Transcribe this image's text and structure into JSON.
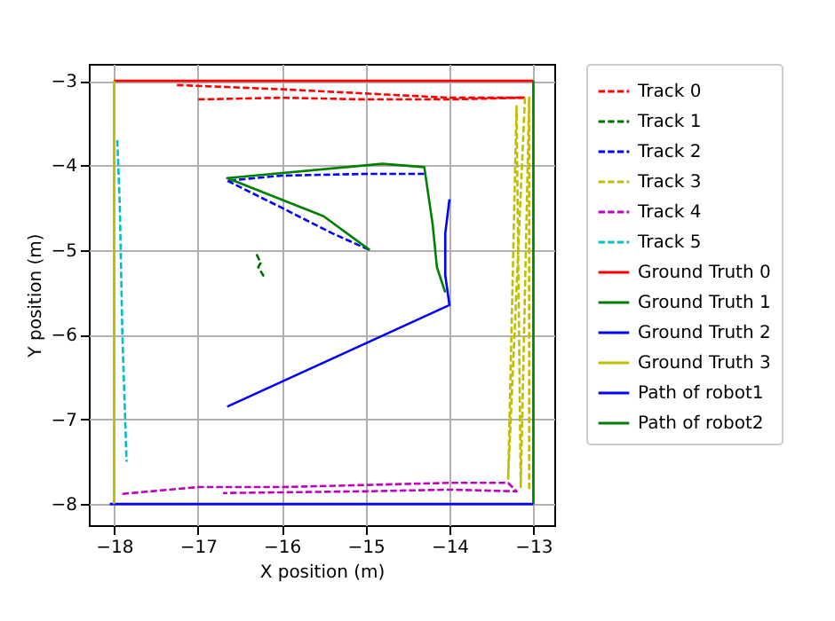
{
  "chart_data": {
    "type": "line",
    "xlabel": "X position (m)",
    "ylabel": "Y position (m)",
    "xlim": [
      -18.3,
      -12.75
    ],
    "ylim": [
      -8.25,
      -2.8
    ],
    "xticks": [
      {
        "value": -18,
        "label": "−18"
      },
      {
        "value": -17,
        "label": "−17"
      },
      {
        "value": -16,
        "label": "−16"
      },
      {
        "value": -15,
        "label": "−15"
      },
      {
        "value": -14,
        "label": "−14"
      },
      {
        "value": -13,
        "label": "−13"
      }
    ],
    "yticks": [
      {
        "value": -8,
        "label": "−8"
      },
      {
        "value": -7,
        "label": "−7"
      },
      {
        "value": -6,
        "label": "−6"
      },
      {
        "value": -5,
        "label": "−5"
      },
      {
        "value": -4,
        "label": "−4"
      },
      {
        "value": -3,
        "label": "−3"
      }
    ],
    "grid": true,
    "legend": "right",
    "series": [
      {
        "name": "Track 0",
        "color": "#ff0000",
        "line_style": "dashed",
        "x": [
          -17.25,
          -16,
          -15,
          -14,
          -13.1,
          -14,
          -15,
          -16,
          -17
        ],
        "values": [
          -3.05,
          -3.1,
          -3.15,
          -3.2,
          -3.2,
          -3.22,
          -3.22,
          -3.2,
          -3.22
        ]
      },
      {
        "name": "Track 1",
        "color": "#006e00",
        "line_style": "dashed",
        "x": [
          -16.3,
          -16.25,
          -16.28,
          -16.22,
          -16.25
        ],
        "values": [
          -5.05,
          -5.15,
          -5.2,
          -5.3,
          -5.25
        ]
      },
      {
        "name": "Track 2",
        "color": "#0000ff",
        "line_style": "dashed",
        "x": [
          -14.3,
          -15,
          -16,
          -16.65,
          -16,
          -15.4,
          -14.95
        ],
        "values": [
          -4.1,
          -4.1,
          -4.12,
          -4.18,
          -4.5,
          -4.8,
          -5
        ]
      },
      {
        "name": "Track 3",
        "color": "#bfbf00",
        "line_style": "dashed",
        "x": [
          -13.1,
          -13.3,
          -13.2,
          -13.15,
          -13.05,
          -13.05
        ],
        "values": [
          -3.2,
          -7.7,
          -3.3,
          -7.8,
          -3.2,
          -7.85
        ]
      },
      {
        "name": "Track 4",
        "color": "#bf00bf",
        "line_style": "dashed",
        "x": [
          -17.9,
          -17,
          -16,
          -14,
          -13.3,
          -13.2,
          -14,
          -15,
          -16.7
        ],
        "values": [
          -7.88,
          -7.8,
          -7.8,
          -7.75,
          -7.75,
          -7.85,
          -7.83,
          -7.85,
          -7.87
        ]
      },
      {
        "name": "Track 5",
        "color": "#00bfbf",
        "line_style": "dashed",
        "x": [
          -17.96,
          -17.93,
          -17.9,
          -17.85
        ],
        "values": [
          -3.7,
          -4.5,
          -6,
          -7.5
        ]
      },
      {
        "name": "Ground Truth 0",
        "color": "#ff0000",
        "line_style": "solid",
        "x": [
          -18,
          -13
        ],
        "values": [
          -3,
          -3
        ]
      },
      {
        "name": "Ground Truth 1",
        "color": "#008000",
        "line_style": "solid",
        "x": [
          -13,
          -13
        ],
        "values": [
          -3,
          -8
        ]
      },
      {
        "name": "Ground Truth 2",
        "color": "#0000ff",
        "line_style": "solid",
        "x": [
          -18.05,
          -13
        ],
        "values": [
          -8,
          -8
        ]
      },
      {
        "name": "Ground Truth 3",
        "color": "#bfbf00",
        "line_style": "solid",
        "x": [
          -18,
          -18
        ],
        "values": [
          -8,
          -3
        ]
      },
      {
        "name": "Path of robot1",
        "color": "#0000ff",
        "line_style": "solid",
        "x": [
          -16.65,
          -14,
          -14.05,
          -14.05,
          -14
        ],
        "values": [
          -6.85,
          -5.65,
          -5.3,
          -4.8,
          -4.4
        ]
      },
      {
        "name": "Path of robot2",
        "color": "#008000",
        "line_style": "solid",
        "x": [
          -14.95,
          -15.5,
          -16.65,
          -14.8,
          -14.3,
          -14.2,
          -14.15,
          -14.05
        ],
        "values": [
          -5,
          -4.6,
          -4.15,
          -3.98,
          -4.02,
          -4.7,
          -5.2,
          -5.5
        ]
      }
    ]
  }
}
